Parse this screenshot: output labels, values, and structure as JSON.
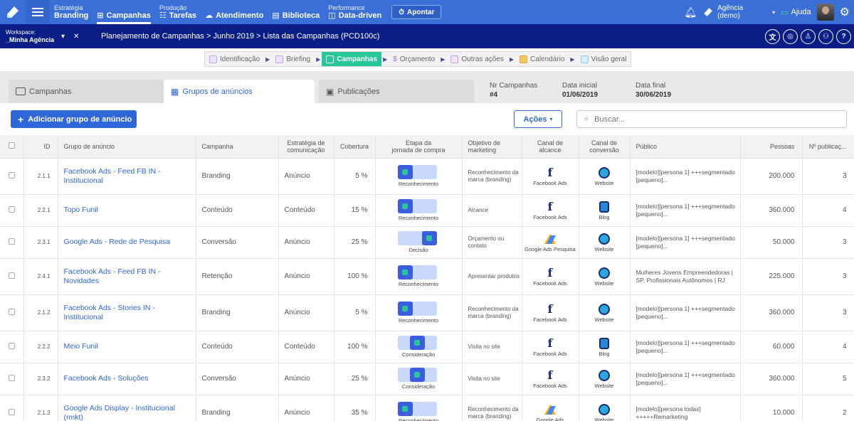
{
  "topnav": {
    "items": [
      {
        "category": "Estratégia",
        "label": "Branding"
      },
      {
        "category": "",
        "label": "Campanhas"
      },
      {
        "category": "Produção",
        "label": "Tarefas"
      },
      {
        "category": "",
        "label": "Atendimento"
      },
      {
        "category": "",
        "label": "Biblioteca"
      },
      {
        "category": "Performance",
        "label": "Data-driven"
      }
    ],
    "apontar": "Apontar",
    "agencia_line1": "Agência",
    "agencia_line2": "(demo)",
    "ajuda": "Ajuda"
  },
  "workspace": {
    "label": "Workspace:",
    "name": "_Minha Agência",
    "breadcrumb": "Planejamento de Campanhas > Junho 2019 > Lista das Campanhas (PCD100c)"
  },
  "steps": [
    {
      "label": "Identificação"
    },
    {
      "label": "Briefing"
    },
    {
      "label": "Campanhas"
    },
    {
      "label": "Orçamento"
    },
    {
      "label": "Outras ações"
    },
    {
      "label": "Calendário"
    },
    {
      "label": "Visão geral"
    }
  ],
  "tabs": {
    "campanhas": "Campanhas",
    "grupos": "Grupos de anúncios",
    "publicacoes": "Publicações"
  },
  "info": {
    "nr_label": "Nr Campanhas",
    "nr_value": "#4",
    "inicio_label": "Data inicial",
    "inicio_value": "01/06/2019",
    "fim_label": "Data final",
    "fim_value": "30/06/2019"
  },
  "actions": {
    "add": "Adicionar grupo de anúncio",
    "acoes": "Ações",
    "search_placeholder": "Buscar..."
  },
  "table": {
    "headers": {
      "id": "ID",
      "grupo": "Grupo de anúncio",
      "campanha": "Campanha",
      "estrategia_1": "Estratégia de",
      "estrategia_2": "comunicação",
      "cobertura": "Cobertura",
      "etapa_1": "Etapa da",
      "etapa_2": "jornada de compra",
      "objetivo_1": "Objetivo de",
      "objetivo_2": "marketing",
      "alcance_1": "Canal de",
      "alcance_2": "alcance",
      "conversao_1": "Canal de",
      "conversao_2": "conversão",
      "publico": "Público",
      "pessoas": "Pessoas",
      "publicacoes": "Nº publicaç..."
    },
    "rows": [
      {
        "id": "2.1.1",
        "grupo": "Facebook Ads - Feed FB IN - Institucional",
        "campanha": "Branding",
        "estrategia": "Anúncio",
        "cobertura": "5 %",
        "etapa": "Reconhecimento",
        "stage": 1,
        "objetivo": "Reconhecimento da marca (branding)",
        "alcance": "Facebook Ads",
        "alcance_icon": "facebook-icon",
        "conversao": "Website",
        "conversao_icon": "globe-icon",
        "publico": "[modelo][persona 1] +++segmentado [pequeno]...",
        "pessoas": "200.000",
        "pub": "3"
      },
      {
        "id": "2.2.1",
        "grupo": "Topo Funil",
        "campanha": "Conteúdo",
        "estrategia": "Conteúdo",
        "cobertura": "15 %",
        "etapa": "Reconhecimento",
        "stage": 1,
        "objetivo": "Alcance",
        "alcance": "Facebook Ads",
        "alcance_icon": "facebook-icon",
        "conversao": "Blog",
        "conversao_icon": "blog-icon",
        "publico": "[modelo][persona 1] +++segmentado [pequeno]...",
        "pessoas": "360.000",
        "pub": "4"
      },
      {
        "id": "2.3.1",
        "grupo": "Google Ads - Rede de Pesquisa",
        "campanha": "Conversão",
        "estrategia": "Anúncio",
        "cobertura": "25 %",
        "etapa": "Decisão",
        "stage": 3,
        "objetivo": "Orçamento ou contato",
        "alcance": "Google Ads Pesquisa",
        "alcance_icon": "google-ads-icon",
        "conversao": "Website",
        "conversao_icon": "globe-icon",
        "publico": "[modelo][persona 1] +++segmentado [pequeno]...",
        "pessoas": "50.000",
        "pub": "3"
      },
      {
        "id": "2.4.1",
        "grupo": "Facebook Ads - Feed FB IN - Novidades",
        "campanha": "Retenção",
        "estrategia": "Anúncio",
        "cobertura": "100 %",
        "etapa": "Reconhecimento",
        "stage": 1,
        "objetivo": "Apresentar produtos",
        "alcance": "Facebook Ads",
        "alcance_icon": "facebook-icon",
        "conversao": "Website",
        "conversao_icon": "globe-icon",
        "publico": "Mulheres Jovens Empreendedoras | SP, Profissionais Autônomos | RJ",
        "pessoas": "225.000",
        "pub": "3"
      },
      {
        "id": "2.1.2",
        "grupo": "Facebook Ads - Stories IN - Institucional",
        "campanha": "Branding",
        "estrategia": "Anúncio",
        "cobertura": "5 %",
        "etapa": "Reconhecimento",
        "stage": 1,
        "objetivo": "Reconhecimento da marca (branding)",
        "alcance": "Facebook Ads",
        "alcance_icon": "facebook-icon",
        "conversao": "Website",
        "conversao_icon": "globe-icon",
        "publico": "[modelo][persona 1] +++segmentado [pequeno]...",
        "pessoas": "360.000",
        "pub": "3"
      },
      {
        "id": "2.2.2",
        "grupo": "Meio Funil",
        "campanha": "Conteúdo",
        "estrategia": "Conteúdo",
        "cobertura": "100 %",
        "etapa": "Consideração",
        "stage": 2,
        "objetivo": "Visita no site",
        "alcance": "Facebook Ads",
        "alcance_icon": "facebook-icon",
        "conversao": "Blog",
        "conversao_icon": "blog-icon",
        "publico": "[modelo][persona 1] +++segmentado [pequeno]...",
        "pessoas": "60.000",
        "pub": "4"
      },
      {
        "id": "2.3.2",
        "grupo": "Facebook Ads - Soluções",
        "campanha": "Conversão",
        "estrategia": "Anúncio",
        "cobertura": "25 %",
        "etapa": "Consideração",
        "stage": 2,
        "objetivo": "Visita no site",
        "alcance": "Facebook Ads",
        "alcance_icon": "facebook-icon",
        "conversao": "Website",
        "conversao_icon": "globe-icon",
        "publico": "[modelo][persona 1] +++segmentado [pequeno]...",
        "pessoas": "360.000",
        "pub": "5"
      },
      {
        "id": "2.1.3",
        "grupo": "Google Ads Display - Institucional (rmkt)",
        "campanha": "Branding",
        "estrategia": "Anúncio",
        "cobertura": "35 %",
        "etapa": "Reconhecimento",
        "stage": 1,
        "objetivo": "Reconhecimento da marca (branding)",
        "alcance": "Google Ads",
        "alcance_icon": "google-ads-icon",
        "conversao": "Website",
        "conversao_icon": "globe-icon",
        "publico": "[modelo][persona todas] +++++Remarketing",
        "pessoas": "10.000",
        "pub": "2"
      }
    ]
  }
}
